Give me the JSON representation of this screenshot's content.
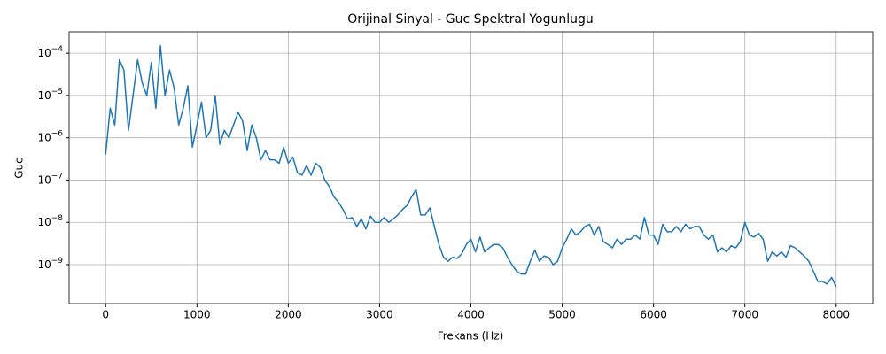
{
  "chart_data": {
    "type": "line",
    "title": "Orijinal Sinyal - Guc Spektral Yogunlugu",
    "xlabel": "Frekans (Hz)",
    "ylabel": "Guc",
    "yscale": "log",
    "grid": true,
    "xlim": [
      -400,
      8400
    ],
    "xticks": [
      0,
      1000,
      2000,
      3000,
      4000,
      5000,
      6000,
      7000,
      8000
    ],
    "ylim": [
      1.2e-10,
      0.00032
    ],
    "yticks": [
      {
        "value": 1e-09,
        "label": "10−9"
      },
      {
        "value": 1e-08,
        "label": "10−8"
      },
      {
        "value": 1e-07,
        "label": "10−7"
      },
      {
        "value": 1e-06,
        "label": "10−6"
      },
      {
        "value": 1e-05,
        "label": "10−5"
      },
      {
        "value": 0.0001,
        "label": "10−4"
      }
    ],
    "x": [
      0,
      50,
      100,
      150,
      200,
      250,
      300,
      350,
      400,
      450,
      500,
      550,
      600,
      650,
      700,
      750,
      800,
      850,
      900,
      950,
      1000,
      1050,
      1100,
      1150,
      1200,
      1250,
      1300,
      1350,
      1400,
      1450,
      1500,
      1550,
      1600,
      1650,
      1700,
      1750,
      1800,
      1850,
      1900,
      1950,
      2000,
      2050,
      2100,
      2150,
      2200,
      2250,
      2300,
      2350,
      2400,
      2450,
      2500,
      2550,
      2600,
      2650,
      2700,
      2750,
      2800,
      2850,
      2900,
      2950,
      3000,
      3050,
      3100,
      3150,
      3200,
      3250,
      3300,
      3350,
      3400,
      3450,
      3500,
      3550,
      3600,
      3650,
      3700,
      3750,
      3800,
      3850,
      3900,
      3950,
      4000,
      4050,
      4100,
      4150,
      4200,
      4250,
      4300,
      4350,
      4400,
      4450,
      4500,
      4550,
      4600,
      4650,
      4700,
      4750,
      4800,
      4850,
      4900,
      4950,
      5000,
      5050,
      5100,
      5150,
      5200,
      5250,
      5300,
      5350,
      5400,
      5450,
      5500,
      5550,
      5600,
      5650,
      5700,
      5750,
      5800,
      5850,
      5900,
      5950,
      6000,
      6050,
      6100,
      6150,
      6200,
      6250,
      6300,
      6350,
      6400,
      6450,
      6500,
      6550,
      6600,
      6650,
      6700,
      6750,
      6800,
      6850,
      6900,
      6950,
      7000,
      7050,
      7100,
      7150,
      7200,
      7250,
      7300,
      7350,
      7400,
      7450,
      7500,
      7550,
      7600,
      7650,
      7700,
      7750,
      7800,
      7850,
      7900,
      7950,
      8000
    ],
    "series": [
      {
        "color": "#1f77b4",
        "values": [
          4e-07,
          5e-06,
          2e-06,
          7e-05,
          4e-05,
          1.5e-06,
          1e-05,
          7e-05,
          2e-05,
          1e-05,
          6e-05,
          5e-06,
          0.00015,
          1e-05,
          4e-05,
          1.5e-05,
          2e-06,
          5e-06,
          1.7e-05,
          6e-07,
          2e-06,
          7e-06,
          1e-06,
          1.5e-06,
          1e-05,
          7e-07,
          1.5e-06,
          1e-06,
          2e-06,
          4e-06,
          2.5e-06,
          5e-07,
          2e-06,
          1e-06,
          3e-07,
          5e-07,
          3e-07,
          3e-07,
          2.5e-07,
          6e-07,
          2.5e-07,
          3.5e-07,
          1.5e-07,
          1.3e-07,
          2.2e-07,
          1.3e-07,
          2.5e-07,
          2e-07,
          1e-07,
          7e-08,
          4e-08,
          3e-08,
          2e-08,
          1.2e-08,
          1.3e-08,
          8e-09,
          1.2e-08,
          7e-09,
          1.4e-08,
          1e-08,
          1e-08,
          1.3e-08,
          1e-08,
          1.2e-08,
          1.5e-08,
          2e-08,
          2.5e-08,
          4e-08,
          6e-08,
          1.5e-08,
          1.5e-08,
          2.2e-08,
          8e-09,
          3e-09,
          1.5e-09,
          1.2e-09,
          1.5e-09,
          1.4e-09,
          1.8e-09,
          3e-09,
          4e-09,
          2e-09,
          4.5e-09,
          2e-09,
          2.5e-09,
          3e-09,
          3e-09,
          2.5e-09,
          1.5e-09,
          1e-09,
          7e-10,
          6e-10,
          6e-10,
          1.2e-09,
          2.2e-09,
          1.2e-09,
          1.6e-09,
          1.5e-09,
          1e-09,
          1.2e-09,
          2.5e-09,
          4e-09,
          7e-09,
          5e-09,
          6e-09,
          8e-09,
          9e-09,
          5e-09,
          8e-09,
          3.5e-09,
          3e-09,
          2.5e-09,
          4e-09,
          3e-09,
          4e-09,
          4e-09,
          5e-09,
          4e-09,
          1.3e-08,
          5e-09,
          5e-09,
          3e-09,
          9e-09,
          6e-09,
          6e-09,
          8e-09,
          6e-09,
          9e-09,
          7e-09,
          8e-09,
          8e-09,
          5e-09,
          4e-09,
          5e-09,
          2e-09,
          2.5e-09,
          2e-09,
          2.8e-09,
          2.5e-09,
          3.5e-09,
          1e-08,
          5e-09,
          4.5e-09,
          5.5e-09,
          4e-09,
          1.2e-09,
          2e-09,
          1.6e-09,
          2e-09,
          1.5e-09,
          2.8e-09,
          2.5e-09,
          2e-09,
          1.6e-09,
          1.2e-09,
          7e-10,
          4e-10,
          4e-10,
          3.5e-10,
          5e-10,
          3e-10
        ]
      }
    ]
  }
}
